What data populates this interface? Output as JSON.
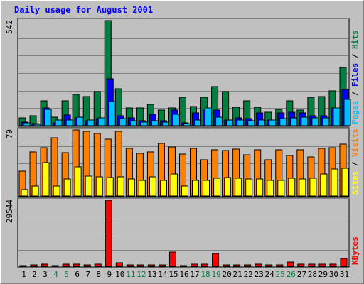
{
  "chart_data": {
    "type": "bar",
    "title": "Daily usage for August 2001",
    "categories": [
      "1",
      "2",
      "3",
      "4",
      "5",
      "6",
      "7",
      "8",
      "9",
      "10",
      "11",
      "12",
      "13",
      "14",
      "15",
      "16",
      "17",
      "18",
      "19",
      "20",
      "21",
      "22",
      "23",
      "24",
      "25",
      "26",
      "27",
      "28",
      "29",
      "30",
      "31"
    ],
    "weekend_days": [
      "4",
      "5",
      "11",
      "12",
      "18",
      "19",
      "25",
      "26"
    ],
    "panels": [
      {
        "id": "hits-panel",
        "max_label": "542",
        "ylim": [
          0,
          542
        ],
        "right_labels": [
          "Pages",
          "Files",
          "Hits"
        ],
        "series": [
          {
            "name": "Hits",
            "color": "#008040",
            "values": [
              40,
              50,
              130,
              45,
              130,
              160,
              150,
              175,
              542,
              190,
              90,
              90,
              110,
              80,
              90,
              145,
              100,
              145,
              200,
              175,
              95,
              130,
              95,
              70,
              85,
              130,
              80,
              145,
              150,
              180,
              300
            ]
          },
          {
            "name": "Files",
            "color": "#0000ff",
            "values": [
              18,
              10,
              90,
              15,
              55,
              40,
              25,
              35,
              240,
              50,
              40,
              25,
              60,
              25,
              80,
              15,
              65,
              80,
              80,
              30,
              40,
              35,
              65,
              30,
              65,
              70,
              65,
              50,
              50,
              90,
              185
            ]
          },
          {
            "name": "Pages",
            "color": "#00c0ff",
            "values": [
              15,
              8,
              85,
              30,
              30,
              45,
              30,
              40,
              125,
              35,
              25,
              20,
              25,
              20,
              60,
              10,
              30,
              90,
              45,
              30,
              30,
              25,
              30,
              30,
              35,
              40,
              45,
              40,
              40,
              90,
              135
            ]
          }
        ]
      },
      {
        "id": "visits-panel",
        "max_label": "79",
        "ylim": [
          0,
          79
        ],
        "right_labels": [
          "Sites",
          "Visits"
        ],
        "series": [
          {
            "name": "Visits",
            "color": "#ff8000",
            "values": [
              30,
              53,
              58,
              70,
              52,
              79,
              77,
              75,
              68,
              77,
              57,
              51,
              53,
              63,
              59,
              50,
              57,
              43,
              55,
              54,
              56,
              49,
              55,
              43,
              55,
              48,
              55,
              47,
              57,
              58,
              62
            ]
          },
          {
            "name": "Sites",
            "color": "#ffff00",
            "values": [
              8,
              12,
              40,
              12,
              20,
              35,
              24,
              23,
              22,
              23,
              20,
              19,
              23,
              19,
              26,
              12,
              19,
              19,
              21,
              22,
              21,
              20,
              20,
              19,
              19,
              21,
              20,
              21,
              26,
              32,
              33
            ]
          }
        ]
      },
      {
        "id": "kbytes-panel",
        "max_label": "29544",
        "ylim": [
          0,
          29544
        ],
        "right_labels": [
          "KBytes"
        ],
        "series": [
          {
            "name": "KBytes",
            "color": "#ff0000",
            "values": [
              300,
              500,
              900,
              300,
              900,
              800,
              700,
              800,
              29544,
              1500,
              500,
              500,
              700,
              700,
              6500,
              400,
              800,
              800,
              5700,
              600,
              500,
              600,
              900,
              700,
              600,
              1800,
              800,
              900,
              900,
              1000,
              3500
            ]
          }
        ]
      }
    ]
  },
  "colors": {
    "background": "#c0c0c0",
    "panel_bg": "#c0c0c0",
    "grid": "#808080",
    "title": "#0000ff",
    "weekday_label": "#000000",
    "weekend_label": "#008040"
  }
}
